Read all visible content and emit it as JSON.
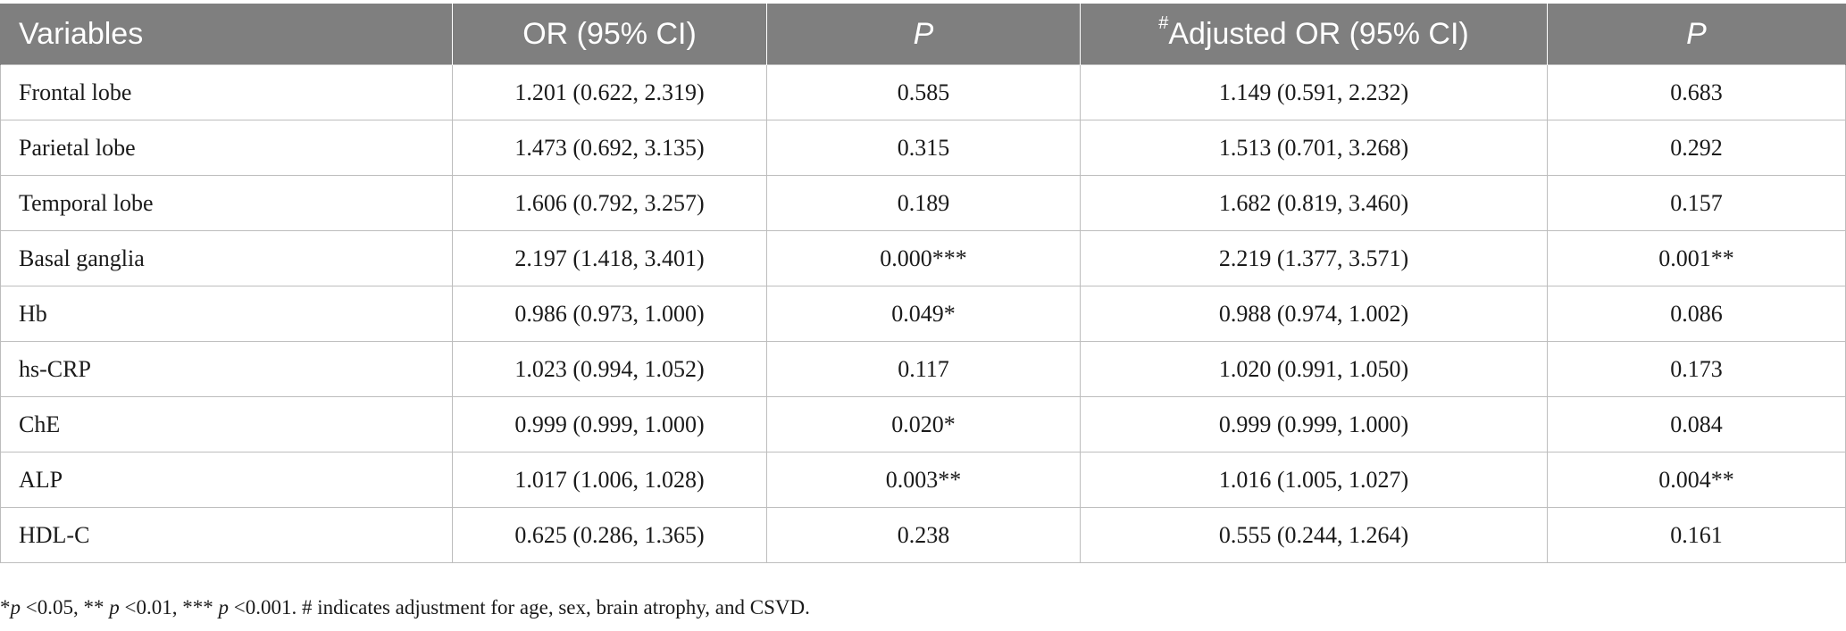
{
  "table": {
    "headers": [
      "Variables",
      "OR (95% CI)",
      "P",
      "#Adjusted OR (95% CI)",
      "P"
    ],
    "header_marker": "#",
    "header_adjusted_text": "Adjusted OR (95% CI)",
    "rows": [
      [
        "Frontal lobe",
        "1.201 (0.622, 2.319)",
        "0.585",
        "1.149 (0.591, 2.232)",
        "0.683"
      ],
      [
        "Parietal lobe",
        "1.473 (0.692, 3.135)",
        "0.315",
        "1.513 (0.701, 3.268)",
        "0.292"
      ],
      [
        "Temporal lobe",
        "1.606 (0.792, 3.257)",
        "0.189",
        "1.682 (0.819, 3.460)",
        "0.157"
      ],
      [
        "Basal ganglia",
        "2.197 (1.418, 3.401)",
        "0.000***",
        "2.219 (1.377, 3.571)",
        "0.001**"
      ],
      [
        "Hb",
        "0.986 (0.973, 1.000)",
        "0.049*",
        "0.988 (0.974, 1.002)",
        "0.086"
      ],
      [
        "hs-CRP",
        "1.023 (0.994, 1.052)",
        "0.117",
        "1.020 (0.991, 1.050)",
        "0.173"
      ],
      [
        "ChE",
        "0.999 (0.999, 1.000)",
        "0.020*",
        "0.999 (0.999, 1.000)",
        "0.084"
      ],
      [
        "ALP",
        "1.017 (1.006, 1.028)",
        "0.003**",
        "1.016 (1.005, 1.027)",
        "0.004**"
      ],
      [
        "HDL-C",
        "0.625 (0.286, 1.365)",
        "0.238",
        "0.555 (0.244, 1.264)",
        "0.161"
      ]
    ]
  },
  "footnote": {
    "parts": [
      "*",
      "p",
      " <0.05, ** ",
      "p",
      " <0.01, *** ",
      "p",
      " <0.001. # indicates adjustment for age, sex, brain atrophy, and CSVD."
    ]
  }
}
